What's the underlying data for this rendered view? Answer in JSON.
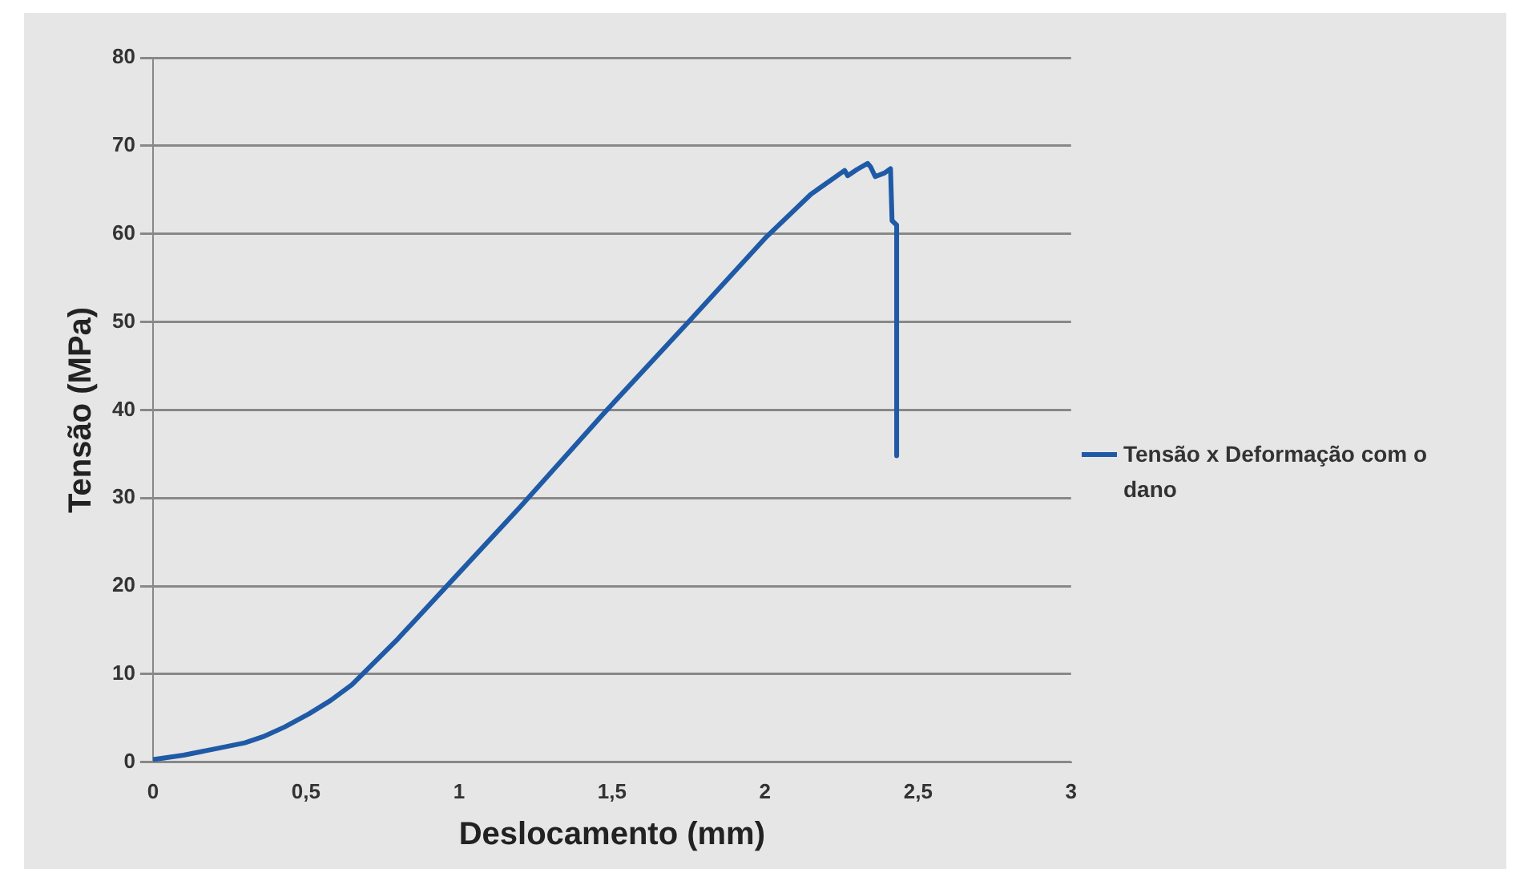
{
  "chart_data": {
    "type": "line",
    "xlabel": "Deslocamento (mm)",
    "ylabel": "Tensão (MPa)",
    "xlim": [
      0,
      3
    ],
    "xticks": [
      0,
      {
        "value": 0.5,
        "label": "0,5"
      },
      1,
      {
        "value": 1.5,
        "label": "1,5"
      },
      2,
      {
        "value": 2.5,
        "label": "2,5"
      },
      3
    ],
    "ylim": [
      0,
      80
    ],
    "yticks": [
      0,
      10,
      20,
      30,
      40,
      50,
      60,
      70,
      80
    ],
    "grid": "y",
    "legend": "right",
    "marker": "none",
    "line_style": "solid",
    "series": [
      {
        "name": "Tensão x Deformação com o dano",
        "color": "#1f5aa6",
        "x": [
          0,
          0.1,
          0.2,
          0.3,
          0.36,
          0.43,
          0.51,
          0.58,
          0.65,
          0.8,
          1,
          1.2,
          1.47,
          1.75,
          2,
          2.15,
          2.26,
          2.27,
          2.3,
          2.335,
          2.345,
          2.36,
          2.39,
          2.41,
          2.415,
          2.43,
          2.43
        ],
        "values": [
          0.3,
          0.8,
          1.5,
          2.2,
          2.9,
          4,
          5.5,
          7,
          8.8,
          14,
          21.5,
          29,
          39.5,
          50,
          59.5,
          64.5,
          67.2,
          66.6,
          67.3,
          68,
          67.6,
          66.5,
          66.9,
          67.4,
          61.5,
          61,
          34.8
        ]
      }
    ]
  }
}
